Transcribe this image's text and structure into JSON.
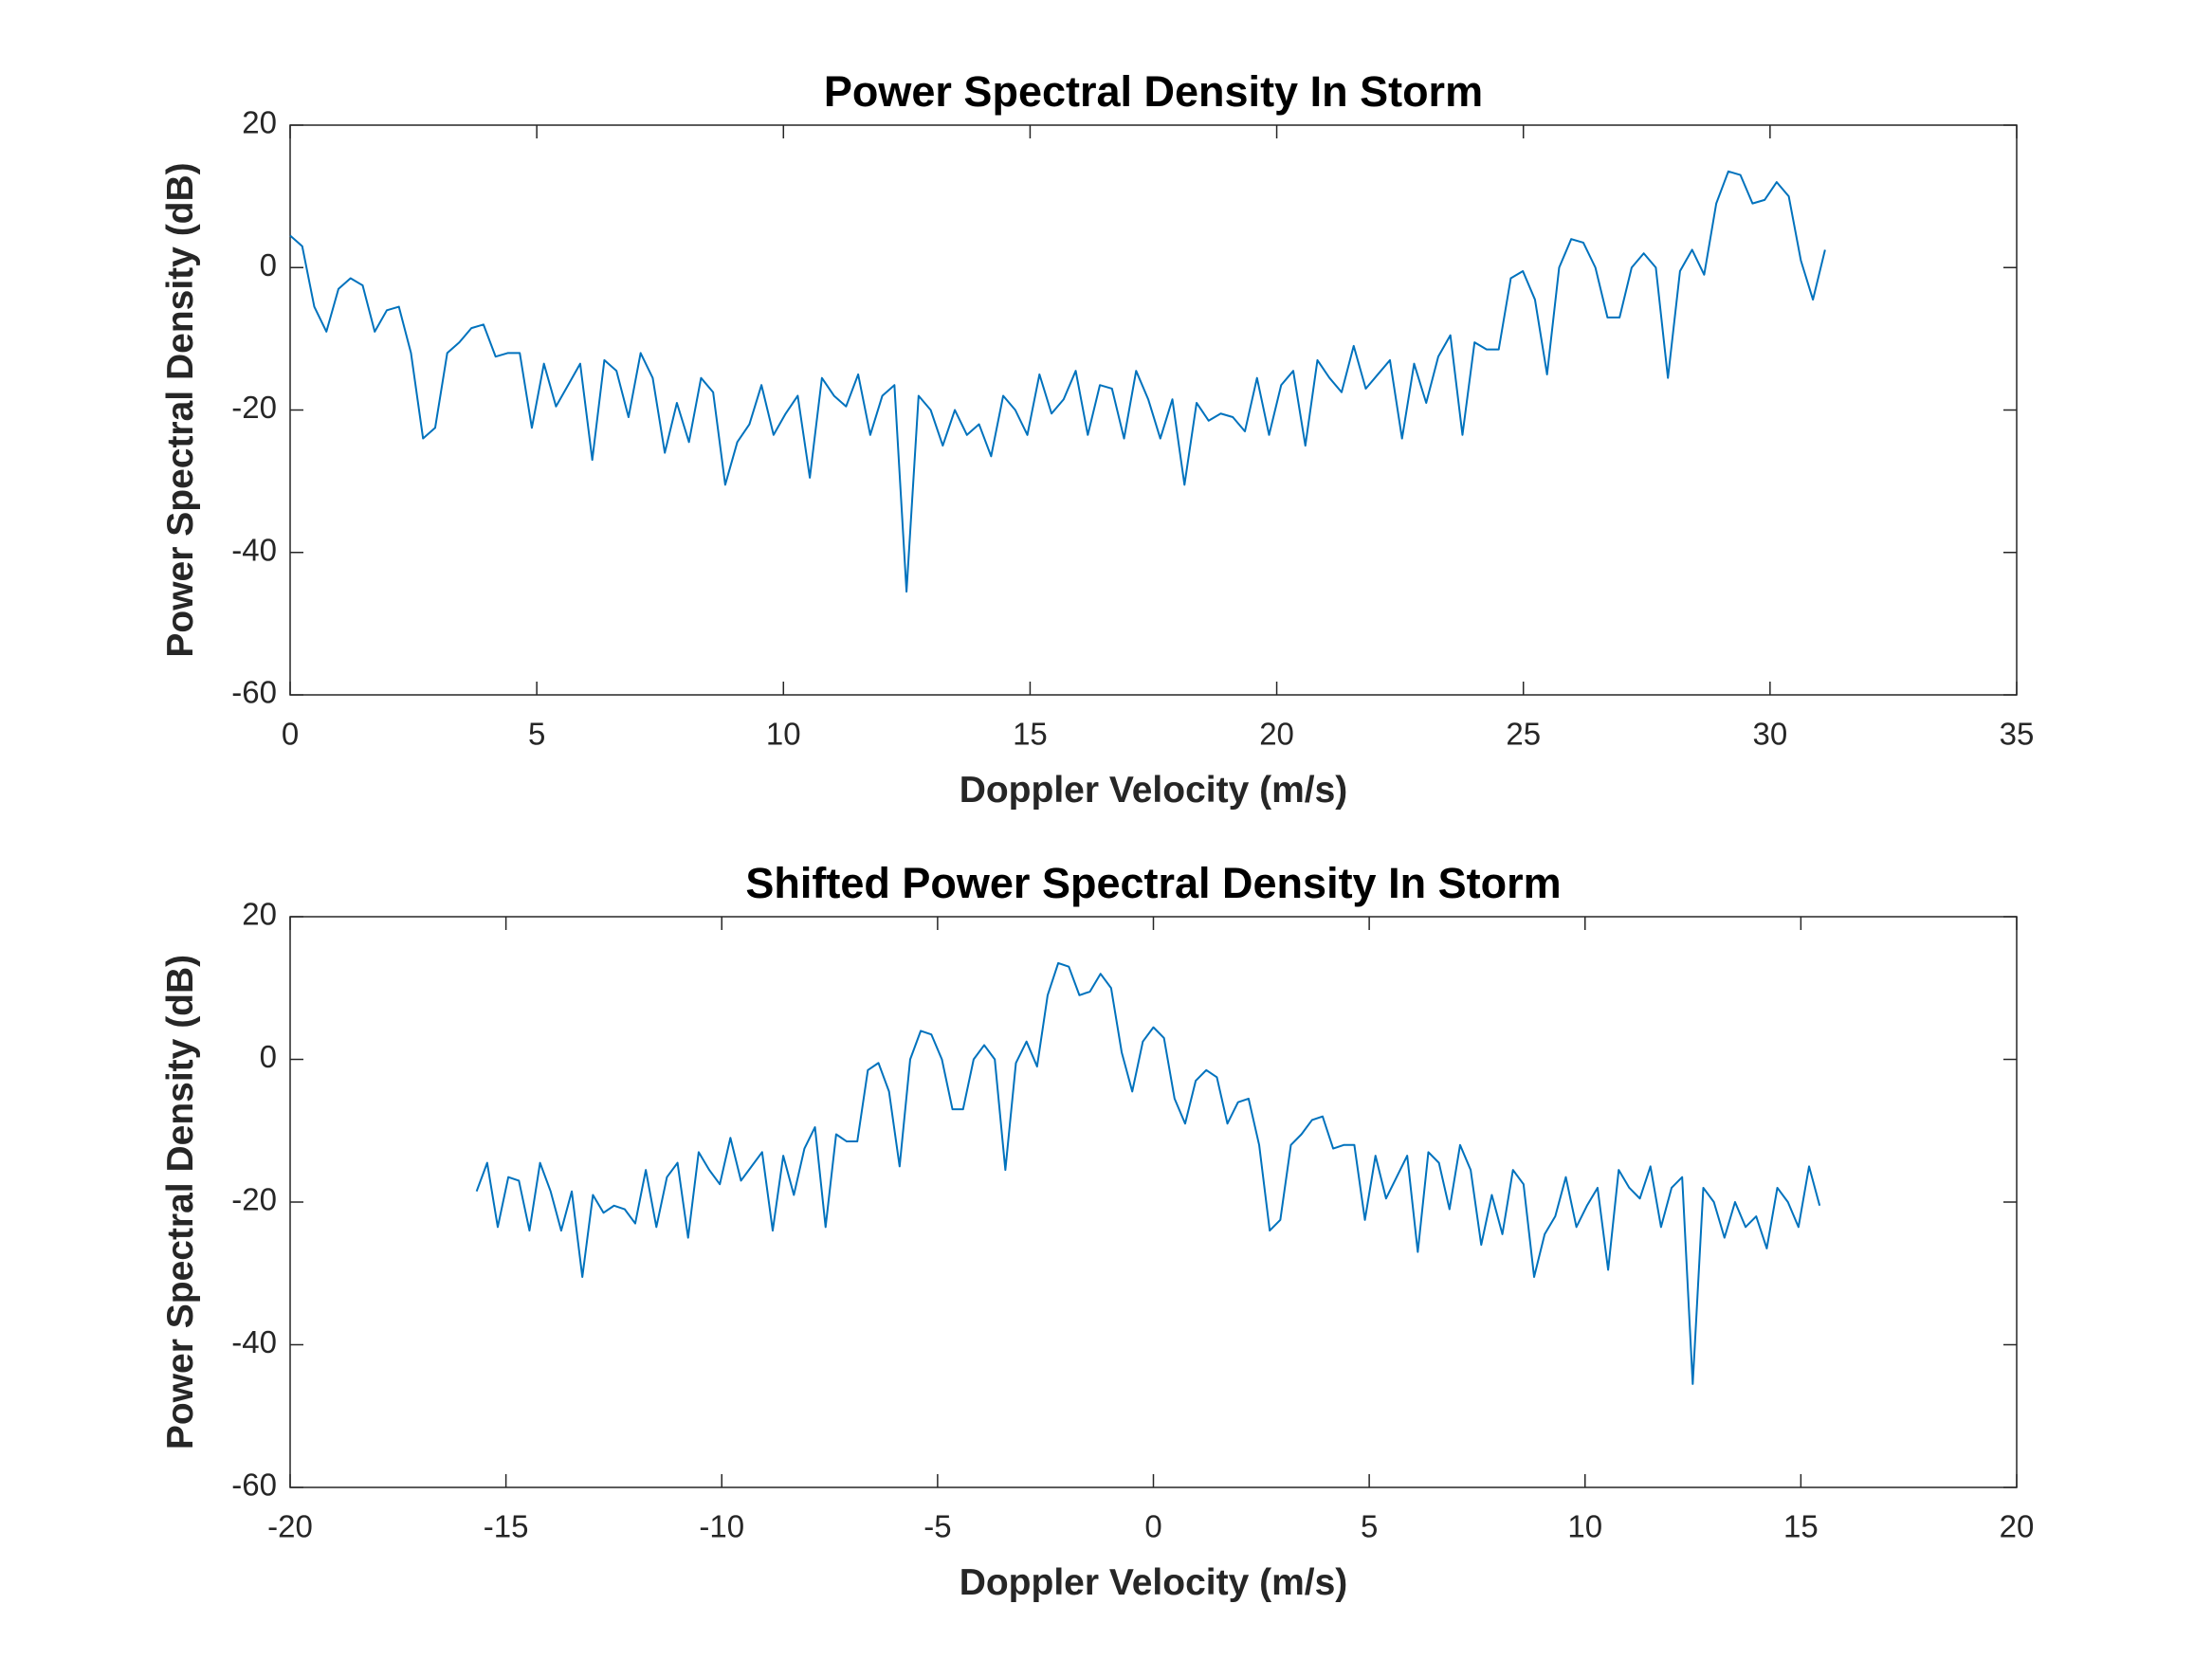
{
  "chart_data": [
    {
      "type": "line",
      "title": "Power Spectral Density In Storm",
      "xlabel": "Doppler Velocity (m/s)",
      "ylabel": "Power Spectral Density (dB)",
      "xlim": [
        0,
        35
      ],
      "xticks": [
        0,
        5,
        10,
        15,
        20,
        25,
        30,
        35
      ],
      "ylim": [
        -60,
        20
      ],
      "yticks": [
        -60,
        -40,
        -20,
        0,
        20
      ],
      "color": "#0072bd",
      "x": [
        0,
        0.245,
        0.49,
        0.735,
        0.98,
        1.225,
        1.47,
        1.715,
        1.96,
        2.205,
        2.45,
        2.695,
        2.94,
        3.185,
        3.43,
        3.675,
        3.92,
        4.165,
        4.41,
        4.655,
        4.9,
        5.145,
        5.39,
        5.635,
        5.88,
        6.125,
        6.37,
        6.615,
        6.86,
        7.105,
        7.35,
        7.595,
        7.84,
        8.085,
        8.33,
        8.575,
        8.82,
        9.065,
        9.31,
        9.555,
        9.8,
        10.045,
        10.29,
        10.535,
        10.78,
        11.025,
        11.27,
        11.515,
        11.76,
        12.005,
        12.25,
        12.495,
        12.74,
        12.985,
        13.23,
        13.475,
        13.72,
        13.965,
        14.21,
        14.455,
        14.7,
        14.945,
        15.19,
        15.435,
        15.68,
        15.925,
        16.17,
        16.415,
        16.66,
        16.905,
        17.15,
        17.395,
        17.64,
        17.885,
        18.13,
        18.375,
        18.62,
        18.865,
        19.11,
        19.355,
        19.6,
        19.845,
        20.09,
        20.335,
        20.58,
        20.825,
        21.07,
        21.315,
        21.56,
        21.805,
        22.05,
        22.295,
        22.54,
        22.785,
        23.03,
        23.275,
        23.52,
        23.765,
        24.01,
        24.255,
        24.5,
        24.745,
        24.99,
        25.235,
        25.48,
        25.725,
        25.97,
        26.215,
        26.46,
        26.705,
        26.95,
        27.195,
        27.44,
        27.685,
        27.93,
        28.175,
        28.42,
        28.665,
        28.91,
        29.155,
        29.4,
        29.645,
        29.89,
        30.135,
        30.38,
        30.625,
        30.87,
        31.115
      ],
      "values": [
        4.5,
        3,
        -5.5,
        -9,
        -3,
        -1.5,
        -2.5,
        -9,
        -6,
        -5.5,
        -12,
        -24,
        -22.5,
        -12,
        -10.5,
        -8.5,
        -8,
        -12.5,
        -12,
        -12,
        -22.5,
        -13.5,
        -19.5,
        -16.5,
        -13.5,
        -27,
        -13,
        -14.5,
        -21,
        -12,
        -15.5,
        -26,
        -19,
        -24.5,
        -15.5,
        -17.5,
        -30.5,
        -24.5,
        -22,
        -16.5,
        -23.5,
        -20.5,
        -18,
        -29.5,
        -15.5,
        -18,
        -19.5,
        -15,
        -23.5,
        -18,
        -16.5,
        -45.5,
        -18,
        -20,
        -25,
        -20,
        -23.5,
        -22,
        -26.5,
        -18,
        -20,
        -23.5,
        -15,
        -20.5,
        -18.5,
        -14.5,
        -23.5,
        -16.5,
        -17,
        -24,
        -14.5,
        -18.5,
        -24,
        -18.5,
        -30.5,
        -19,
        -21.5,
        -20.5,
        -21,
        -23,
        -15.5,
        -23.5,
        -16.5,
        -14.5,
        -25,
        -13,
        -15.5,
        -17.5,
        -11,
        -17,
        -15,
        -13,
        -24,
        -13.5,
        -19,
        -12.5,
        -9.5,
        -23.5,
        -10.5,
        -11.5,
        -11.5,
        -1.5,
        -0.5,
        -4.5,
        -15,
        0,
        4,
        3.5,
        0,
        -7,
        -7,
        0,
        2,
        0,
        -15.5,
        -0.5,
        2.5,
        -1,
        9,
        13.5,
        13,
        9,
        9.5,
        12,
        10,
        1,
        -4.5,
        2.5
      ]
    },
    {
      "type": "line",
      "title": "Shifted Power Spectral Density In Storm",
      "xlabel": "Doppler Velocity (m/s)",
      "ylabel": "Power Spectral Density (dB)",
      "xlim": [
        -20,
        20
      ],
      "xticks": [
        -20,
        -15,
        -10,
        -5,
        0,
        5,
        10,
        15,
        20
      ],
      "ylim": [
        -60,
        20
      ],
      "yticks": [
        -60,
        -40,
        -20,
        0,
        20
      ],
      "color": "#0072bd",
      "x": [
        -15.68,
        -15.435,
        -15.19,
        -14.945,
        -14.7,
        -14.455,
        -14.21,
        -13.965,
        -13.72,
        -13.475,
        -13.23,
        -12.985,
        -12.74,
        -12.495,
        -12.25,
        -12.005,
        -11.76,
        -11.515,
        -11.27,
        -11.025,
        -10.78,
        -10.535,
        -10.29,
        -10.045,
        -9.8,
        -9.555,
        -9.31,
        -9.065,
        -8.82,
        -8.575,
        -8.33,
        -8.085,
        -7.84,
        -7.595,
        -7.35,
        -7.105,
        -6.86,
        -6.615,
        -6.37,
        -6.125,
        -5.88,
        -5.635,
        -5.39,
        -5.145,
        -4.9,
        -4.655,
        -4.41,
        -4.165,
        -3.92,
        -3.675,
        -3.43,
        -3.185,
        -2.94,
        -2.695,
        -2.45,
        -2.205,
        -1.96,
        -1.715,
        -1.47,
        -1.225,
        -0.98,
        -0.735,
        -0.49,
        -0.245,
        0,
        0.245,
        0.49,
        0.735,
        0.98,
        1.225,
        1.47,
        1.715,
        1.96,
        2.205,
        2.45,
        2.695,
        2.94,
        3.185,
        3.43,
        3.675,
        3.92,
        4.165,
        4.41,
        4.655,
        4.9,
        5.145,
        5.39,
        5.635,
        5.88,
        6.125,
        6.37,
        6.615,
        6.86,
        7.105,
        7.35,
        7.595,
        7.84,
        8.085,
        8.33,
        8.575,
        8.82,
        9.065,
        9.31,
        9.555,
        9.8,
        10.045,
        10.29,
        10.535,
        10.78,
        11.025,
        11.27,
        11.515,
        11.76,
        12.005,
        12.25,
        12.495,
        12.74,
        12.985,
        13.23,
        13.475,
        13.72,
        13.965,
        14.21,
        14.455,
        14.7,
        14.945,
        15.19,
        15.435
      ],
      "values": [
        -18.5,
        -14.5,
        -23.5,
        -16.5,
        -17,
        -24,
        -14.5,
        -18.5,
        -24,
        -18.5,
        -30.5,
        -19,
        -21.5,
        -20.5,
        -21,
        -23,
        -15.5,
        -23.5,
        -16.5,
        -14.5,
        -25,
        -13,
        -15.5,
        -17.5,
        -11,
        -17,
        -15,
        -13,
        -24,
        -13.5,
        -19,
        -12.5,
        -9.5,
        -23.5,
        -10.5,
        -11.5,
        -11.5,
        -1.5,
        -0.5,
        -4.5,
        -15,
        0,
        4,
        3.5,
        0,
        -7,
        -7,
        0,
        2,
        0,
        -15.5,
        -0.5,
        2.5,
        -1,
        9,
        13.5,
        13,
        9,
        9.5,
        12,
        10,
        1,
        -4.5,
        2.5,
        4.5,
        3,
        -5.5,
        -9,
        -3,
        -1.5,
        -2.5,
        -9,
        -6,
        -5.5,
        -12,
        -24,
        -22.5,
        -12,
        -10.5,
        -8.5,
        -8,
        -12.5,
        -12,
        -12,
        -22.5,
        -13.5,
        -19.5,
        -16.5,
        -13.5,
        -27,
        -13,
        -14.5,
        -21,
        -12,
        -15.5,
        -26,
        -19,
        -24.5,
        -15.5,
        -17.5,
        -30.5,
        -24.5,
        -22,
        -16.5,
        -23.5,
        -20.5,
        -18,
        -29.5,
        -15.5,
        -18,
        -19.5,
        -15,
        -23.5,
        -18,
        -16.5,
        -45.5,
        -18,
        -20,
        -25,
        -20,
        -23.5,
        -22,
        -26.5,
        -18,
        -20,
        -23.5,
        -15,
        -20.5
      ]
    }
  ]
}
